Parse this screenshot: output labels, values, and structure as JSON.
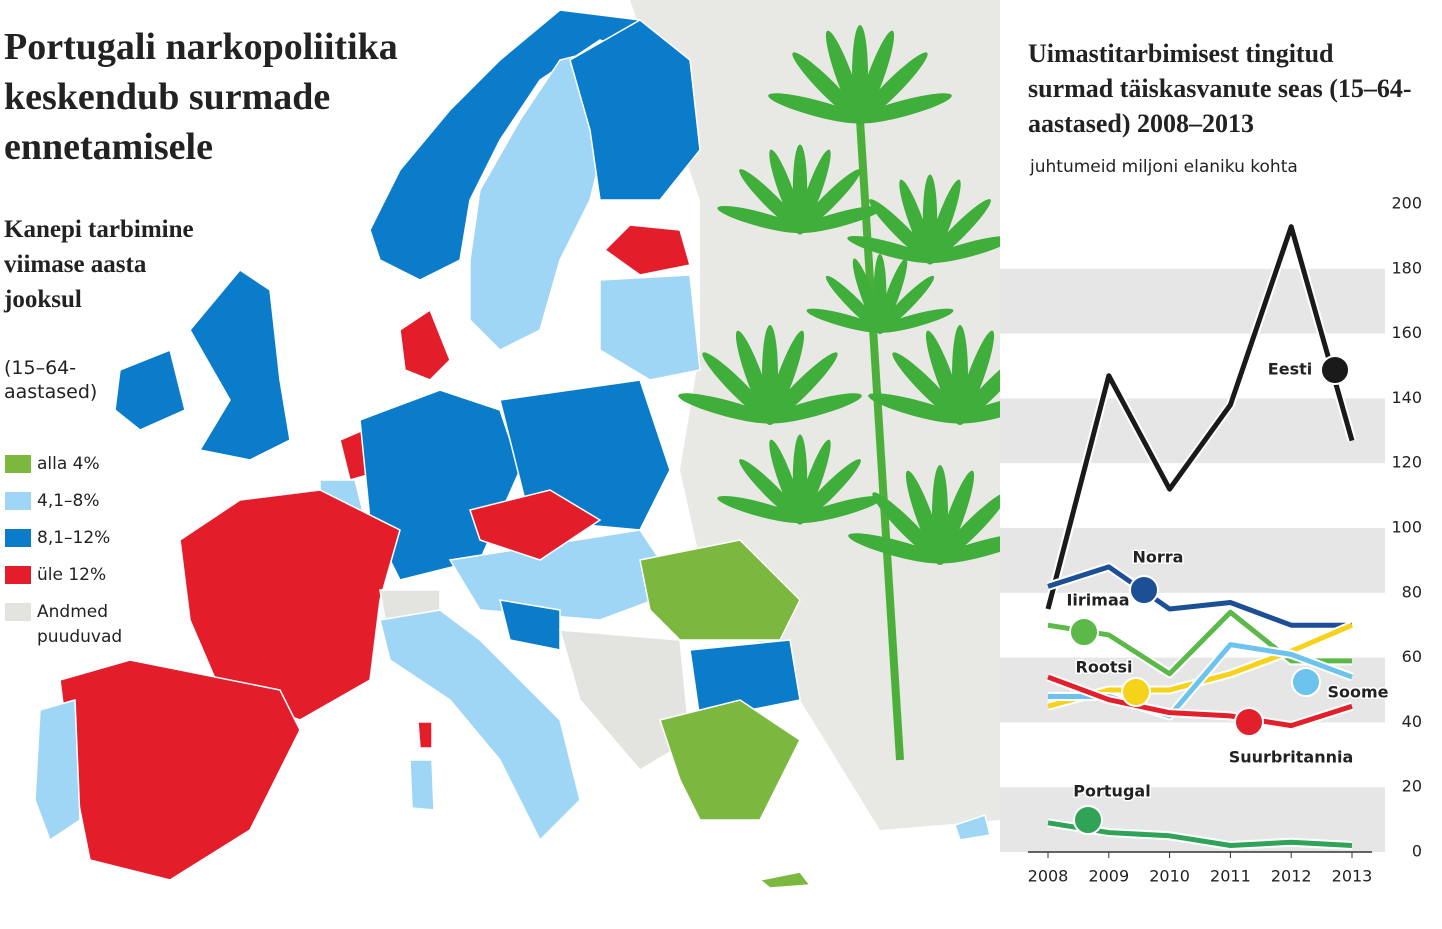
{
  "title": "Portugali narkopoliitika keskendub surmade ennetamisele",
  "map": {
    "subtitle": "Kanepi tarbimine viimase aasta jooksul",
    "subtitle_note": "(15–64-aastased)",
    "legend": [
      {
        "label": "alla 4%",
        "color": "#7cb83f"
      },
      {
        "label": "4,1–8%",
        "color": "#9fd6f5"
      },
      {
        "label": "8,1–12%",
        "color": "#0a7cc9"
      },
      {
        "label": "üle 12%",
        "color": "#e41d2b"
      },
      {
        "label": "Andmed puuduvad",
        "color": "#e3e3df"
      }
    ]
  },
  "chart_data": {
    "type": "line",
    "title": "Uimastitarbimisest tingitud surmad täiskasvanute seas (15–64-aastased) 2008–2013",
    "subtitle": "juhtumeid miljoni elaniku kohta",
    "x": [
      2008,
      2009,
      2010,
      2011,
      2012,
      2013
    ],
    "xlim": [
      2008,
      2013
    ],
    "ylim": [
      0,
      200
    ],
    "yticks": [
      0,
      20,
      40,
      60,
      80,
      100,
      120,
      140,
      160,
      180,
      200
    ],
    "grid": "bands",
    "series": [
      {
        "name": "Eesti",
        "color": "#1a1a1a",
        "values": [
          75,
          147,
          112,
          138,
          193,
          127
        ]
      },
      {
        "name": "Norra",
        "color": "#1c4f96",
        "values": [
          82,
          88,
          75,
          77,
          70,
          70
        ]
      },
      {
        "name": "Iirimaa",
        "color": "#5cb848",
        "values": [
          70,
          67,
          55,
          74,
          59,
          59
        ]
      },
      {
        "name": "Rootsi",
        "color": "#f6d21a",
        "values": [
          45,
          50,
          50,
          55,
          62,
          70
        ]
      },
      {
        "name": "Soome",
        "color": "#6cc3ee",
        "values": [
          48,
          48,
          42,
          64,
          61,
          54
        ]
      },
      {
        "name": "Suurbritannia",
        "color": "#e2202c",
        "values": [
          54,
          47,
          43,
          42,
          39,
          45
        ]
      },
      {
        "name": "Portugal",
        "color": "#2fa357",
        "values": [
          9,
          6,
          5,
          2,
          3,
          2
        ]
      }
    ]
  }
}
